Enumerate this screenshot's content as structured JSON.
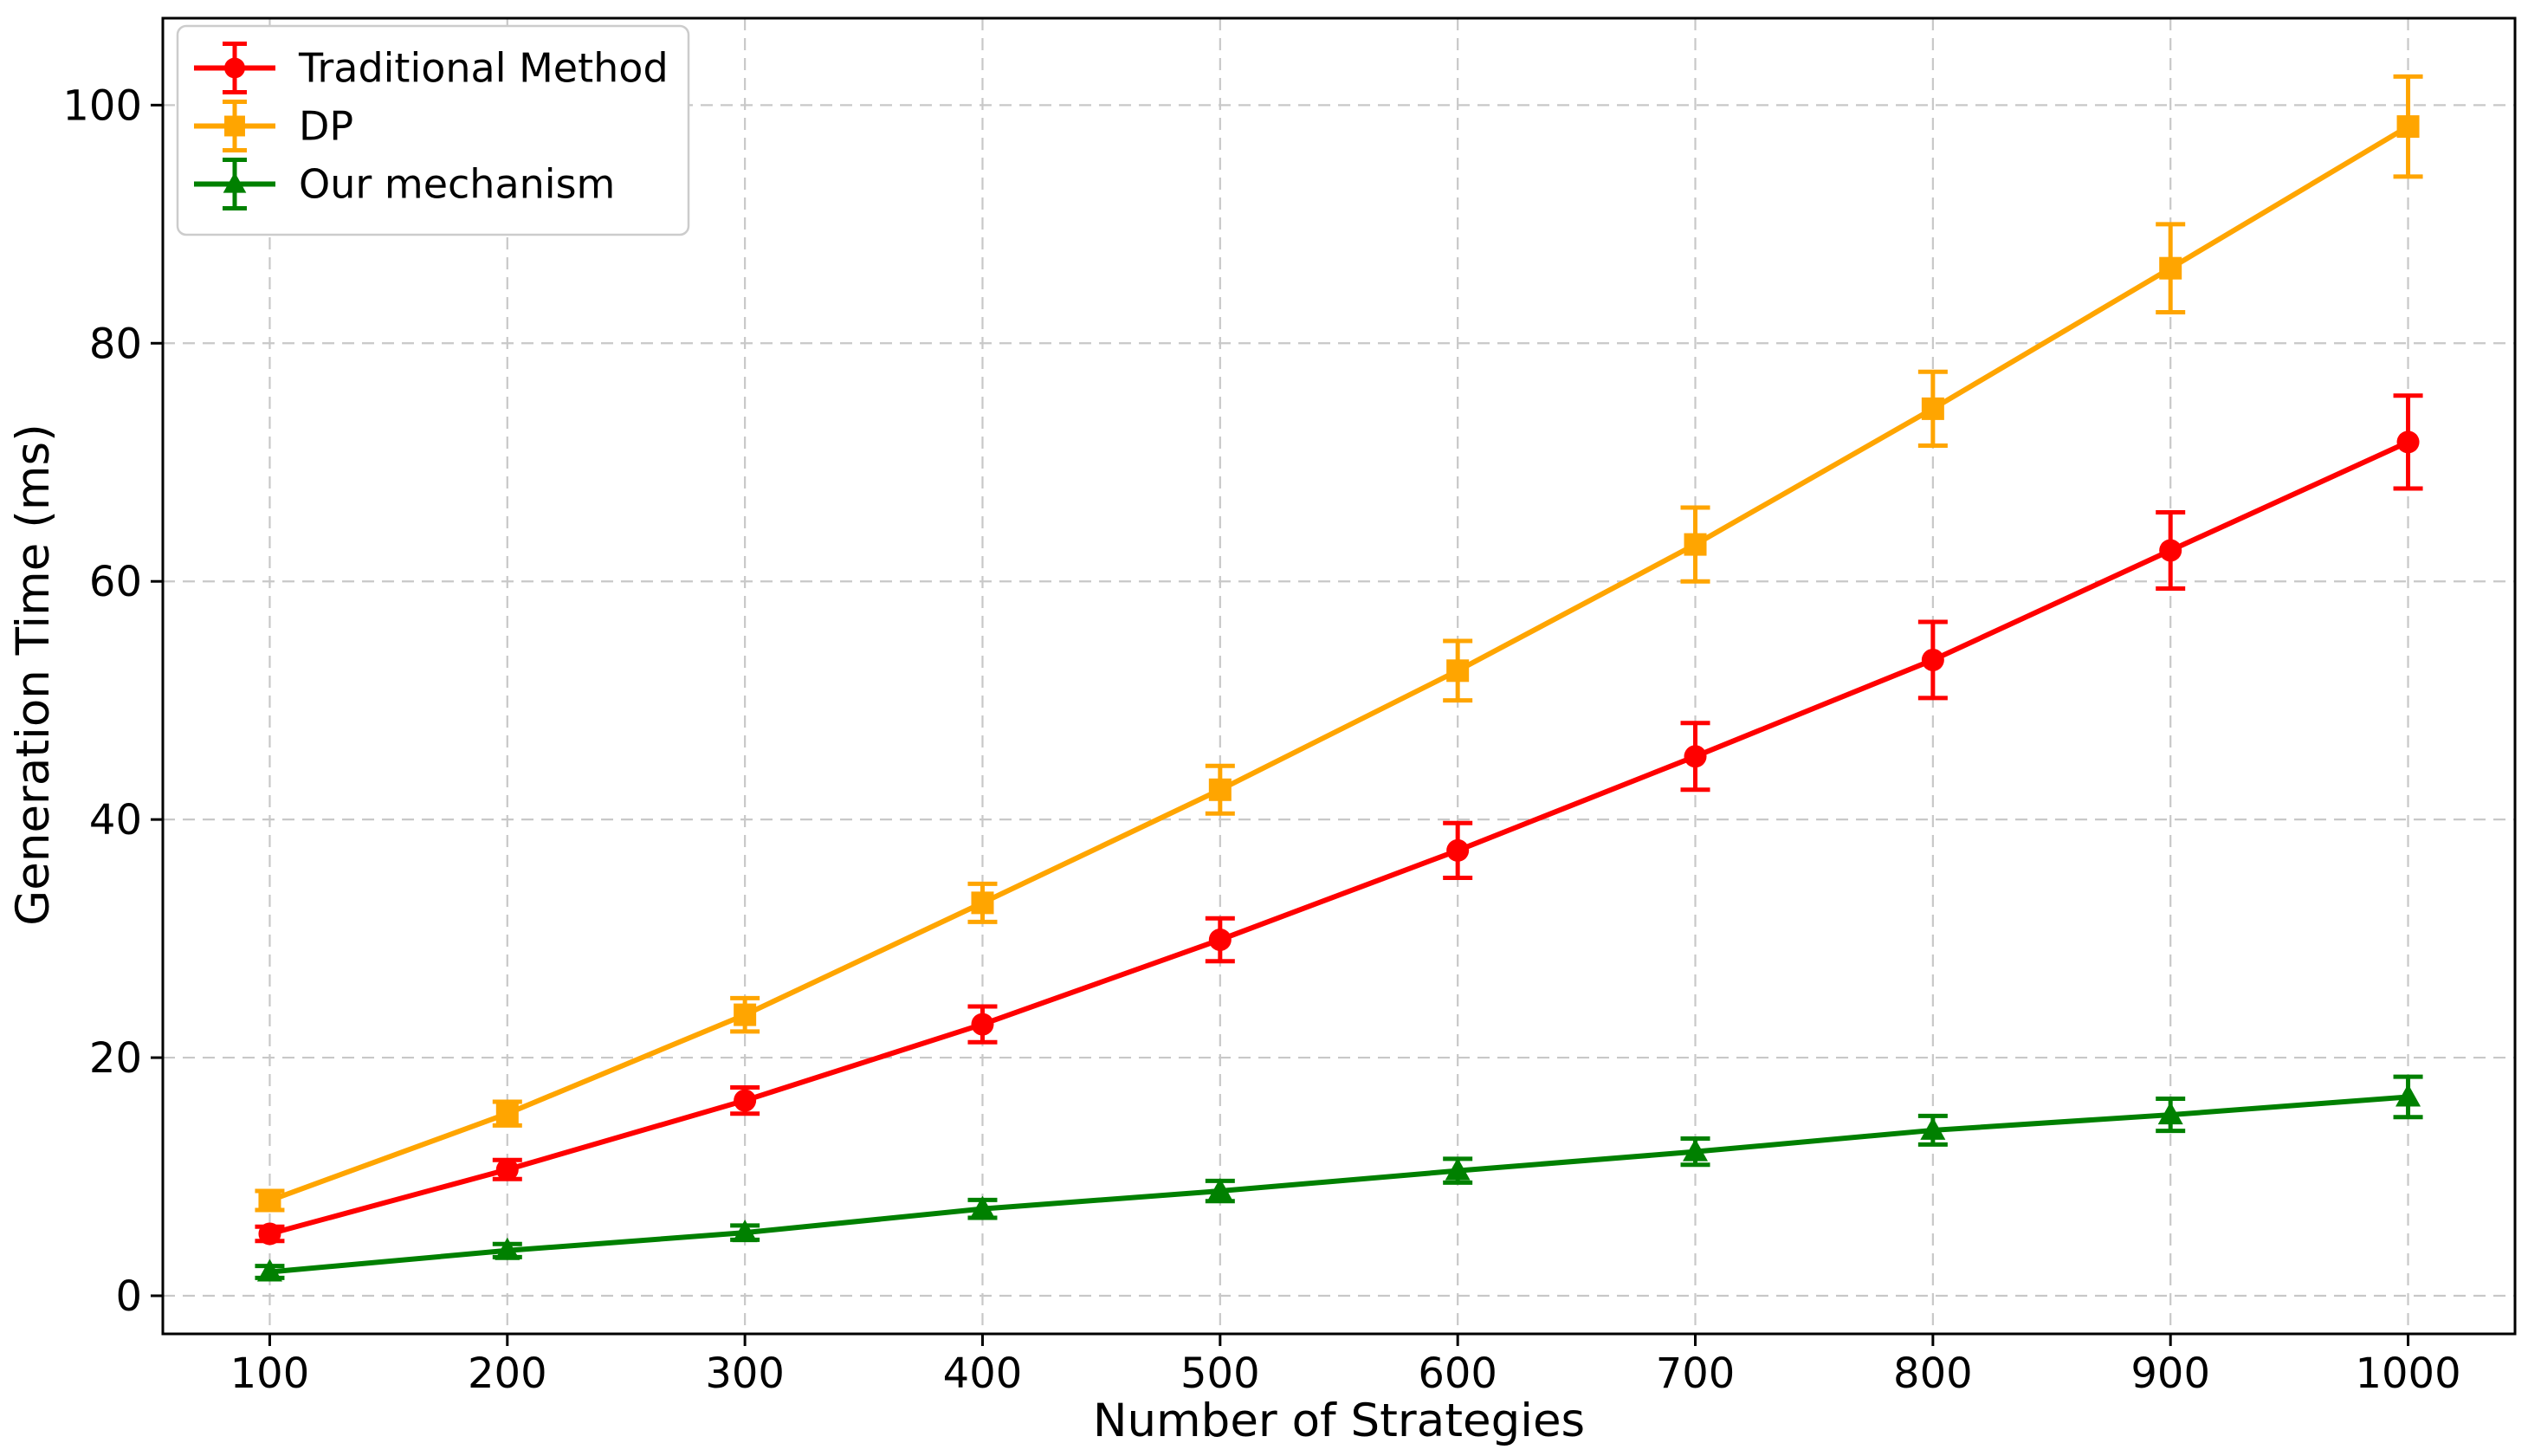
{
  "chart_data": {
    "type": "line",
    "title": "",
    "xlabel": "Number of Strategies",
    "ylabel": "Generation Time (ms)",
    "x": [
      100,
      200,
      300,
      400,
      500,
      600,
      700,
      800,
      900,
      1000
    ],
    "xtick_labels": [
      "100",
      "200",
      "300",
      "400",
      "500",
      "600",
      "700",
      "800",
      "900",
      "1000"
    ],
    "yticks": [
      0,
      20,
      40,
      60,
      80,
      100
    ],
    "ytick_labels": [
      "0",
      "20",
      "40",
      "60",
      "80",
      "100"
    ],
    "xlim": [
      55,
      1045
    ],
    "ylim": [
      -3.2,
      107.3
    ],
    "grid": "dashed-both-axes",
    "legend_position": "upper-left",
    "series": [
      {
        "name": "Traditional Method",
        "color": "#ff0000",
        "marker": "circle",
        "values": [
          5.2,
          10.6,
          16.4,
          22.8,
          29.9,
          37.4,
          45.3,
          53.4,
          62.6,
          71.7
        ],
        "errors": [
          0.6,
          0.8,
          1.1,
          1.5,
          1.8,
          2.3,
          2.8,
          3.2,
          3.2,
          3.9
        ]
      },
      {
        "name": "DP",
        "color": "#ffa500",
        "marker": "square",
        "values": [
          8.0,
          15.3,
          23.6,
          33.0,
          42.5,
          52.5,
          63.1,
          74.5,
          86.3,
          98.2
        ],
        "errors": [
          0.8,
          1.0,
          1.4,
          1.6,
          2.0,
          2.5,
          3.1,
          3.1,
          3.7,
          4.2
        ]
      },
      {
        "name": "Our mechanism",
        "color": "#008000",
        "marker": "triangle",
        "values": [
          2.0,
          3.8,
          5.3,
          7.3,
          8.8,
          10.5,
          12.1,
          13.9,
          15.2,
          16.7
        ],
        "errors": [
          0.5,
          0.55,
          0.6,
          0.75,
          0.85,
          1.0,
          1.1,
          1.2,
          1.35,
          1.7
        ]
      }
    ]
  },
  "colors": {
    "background": "#ffffff",
    "grid": "#c8c8c8",
    "spine": "#000000",
    "tick": "#000000",
    "text": "#000000",
    "legend_border": "#cccccc",
    "legend_bg": "#ffffff"
  }
}
